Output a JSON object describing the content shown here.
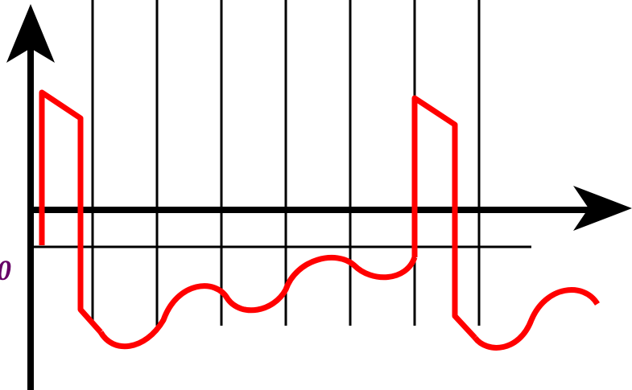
{
  "colors": {
    "axis": "#000000",
    "grid": "#000000",
    "waveform": "#ff0000",
    "label": "#660066"
  },
  "baseline_label": "0",
  "icons": {
    "y_axis_arrow": "arrow-up-icon",
    "x_axis_arrow": "arrow-right-icon"
  }
}
